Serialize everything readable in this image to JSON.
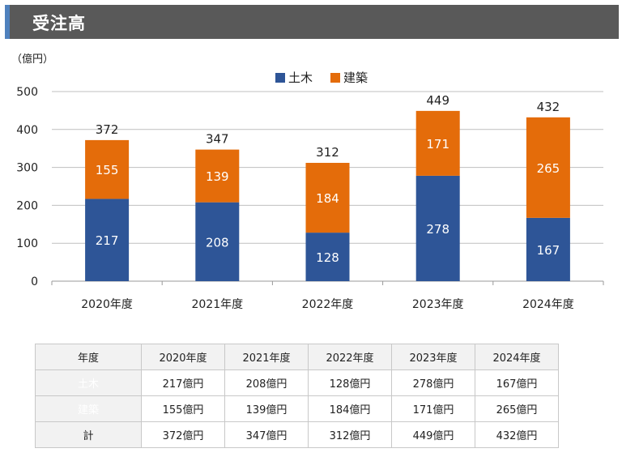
{
  "header": {
    "title": "受注高"
  },
  "unit_label": "（億円）",
  "colors": {
    "doboku": "#2e5597",
    "kenchiku": "#e46c0a",
    "header_bg": "#595959",
    "header_accent": "#4f81bd"
  },
  "chart_data": {
    "type": "bar",
    "stacked": true,
    "title": "",
    "xlabel": "",
    "ylabel": "（億円）",
    "categories": [
      "2020年度",
      "2021年度",
      "2022年度",
      "2023年度",
      "2024年度"
    ],
    "series": [
      {
        "name": "土木",
        "values": [
          217,
          208,
          128,
          278,
          167
        ],
        "color": "#2e5597"
      },
      {
        "name": "建築",
        "values": [
          155,
          139,
          184,
          171,
          265
        ],
        "color": "#e46c0a"
      }
    ],
    "totals": [
      372,
      347,
      312,
      449,
      432
    ],
    "ylim": [
      0,
      500
    ],
    "yticks": [
      0,
      100,
      200,
      300,
      400,
      500
    ],
    "grid": true,
    "legend": "top-center"
  },
  "table": {
    "header_label": "年度",
    "columns": [
      "2020年度",
      "2021年度",
      "2022年度",
      "2023年度",
      "2024年度"
    ],
    "rows": [
      {
        "label": "土木",
        "values": [
          "217億円",
          "208億円",
          "128億円",
          "278億円",
          "167億円"
        ]
      },
      {
        "label": "建築",
        "values": [
          "155億円",
          "139億円",
          "184億円",
          "171億円",
          "265億円"
        ]
      },
      {
        "label": "計",
        "values": [
          "372億円",
          "347億円",
          "312億円",
          "449億円",
          "432億円"
        ]
      }
    ]
  }
}
